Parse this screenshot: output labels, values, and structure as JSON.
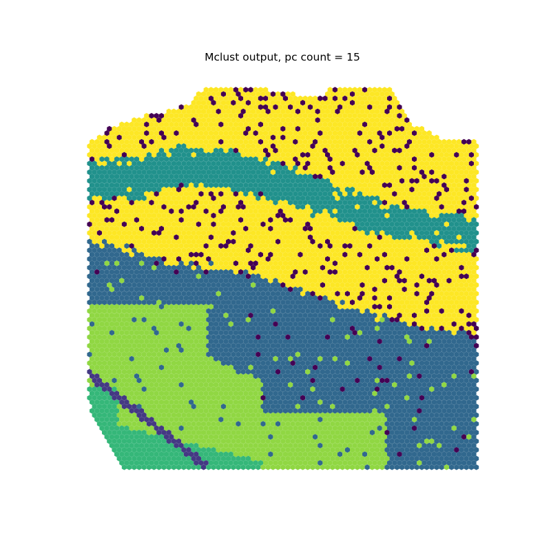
{
  "chart_data": {
    "type": "scatter",
    "title": "Mclust output, pc count = 15",
    "xlabel": "",
    "ylabel": "",
    "axes_visible": false,
    "grid": false,
    "legend": "none",
    "marker": "hexagon",
    "colormap": "viridis",
    "cluster_colors": {
      "1": "#440154",
      "2": "#443983",
      "3": "#31688e",
      "4": "#21918c",
      "5": "#35b779",
      "6": "#90d743",
      "7": "#fde725"
    },
    "regions_description": [
      {
        "cluster": 7,
        "note": "upper yellow band with scattered cluster-1 spots"
      },
      {
        "cluster": 4,
        "note": "teal band running diagonally across the middle"
      },
      {
        "cluster": 7,
        "note": "middle yellow diagonal band"
      },
      {
        "cluster": 3,
        "note": "dark blue region in lower middle and right"
      },
      {
        "cluster": 6,
        "note": "light green region in lower left"
      },
      {
        "cluster": 5,
        "note": "green patch at bottom-left corner"
      },
      {
        "cluster": 2,
        "note": "thin purple diagonal strip in bottom-left"
      }
    ]
  }
}
